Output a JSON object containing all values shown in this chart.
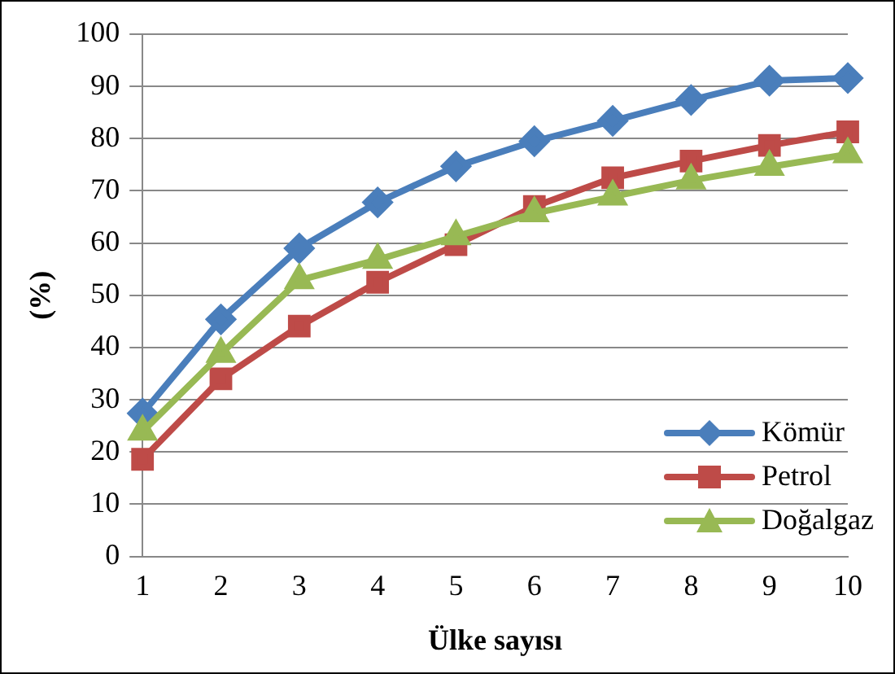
{
  "chart_data": {
    "type": "line",
    "xlabel": "Ülke sayısı",
    "ylabel": "(%)",
    "categories": [
      "1",
      "2",
      "3",
      "4",
      "5",
      "6",
      "7",
      "8",
      "9",
      "10"
    ],
    "series": [
      {
        "name": "Kömür",
        "color": "#4a7ebb",
        "marker": "diamond",
        "values": [
          27.4,
          45.4,
          59,
          67.8,
          74.7,
          79.5,
          83.4,
          87.4,
          91.1,
          91.6
        ]
      },
      {
        "name": "Petrol",
        "color": "#be4b48",
        "marker": "square",
        "values": [
          18.6,
          34,
          44.1,
          52.5,
          59.7,
          67,
          72.5,
          75.7,
          78.7,
          81.3
        ]
      },
      {
        "name": "Doğalgaz",
        "color": "#98b954",
        "marker": "triangle",
        "values": [
          23.9,
          38.8,
          52.9,
          56.8,
          61.3,
          65.7,
          68.9,
          72,
          74.6,
          77
        ]
      }
    ],
    "ylim": [
      0,
      100
    ],
    "yticks": [
      0,
      10,
      20,
      30,
      40,
      50,
      60,
      70,
      80,
      90,
      100
    ],
    "grid": "y",
    "legend": "bottom right",
    "line_style": "solid"
  }
}
